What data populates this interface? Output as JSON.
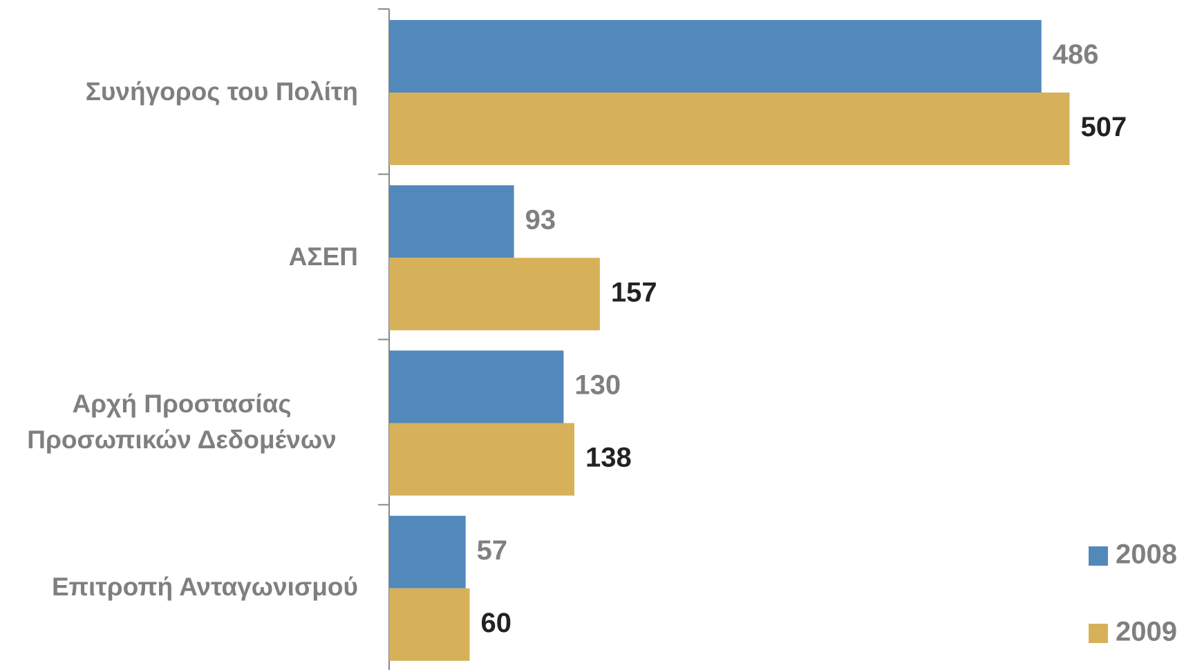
{
  "chart_data": {
    "type": "hbar",
    "categories": [
      "Συνήγορος του Πολίτη",
      "ΑΣΕΠ",
      "Αρχή Προστασίας Προσωπικών Δεδομένων",
      "Επιτροπή Ανταγωνισμού"
    ],
    "series": [
      {
        "name": "2008",
        "color": "#5289bb",
        "values": [
          486,
          93,
          130,
          57
        ]
      },
      {
        "name": "2009",
        "color": "#d7b15a",
        "values": [
          507,
          157,
          138,
          60
        ]
      }
    ],
    "xlim": [
      0,
      550
    ]
  }
}
